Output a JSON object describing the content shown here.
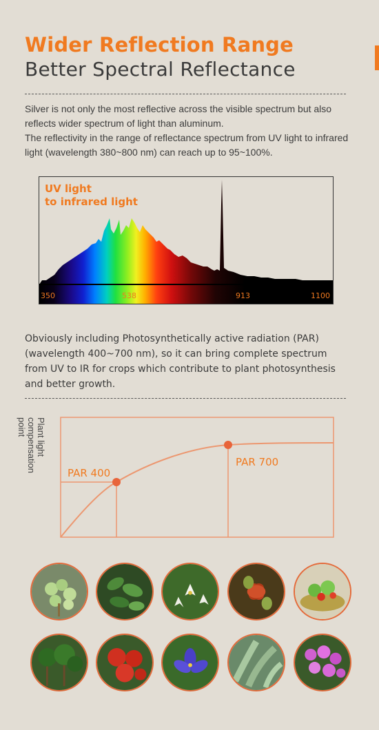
{
  "header": {
    "title": "Wider Reflection Range",
    "subtitle": "Better Spectral Reflectance"
  },
  "intro": {
    "line1": "Silver is not only the most reflective across the visible spectrum but also reflects wider spectrum of light than aluminum.",
    "line2": "The reflectivity in the range of reflectance spectrum from UV light to infrared light (wavelength 380~800 nm) can reach up to 95~100%."
  },
  "spectrum": {
    "label_line1": "UV light",
    "label_line2": "to infrared light",
    "ticks": [
      "350",
      "538",
      "913",
      "1100"
    ]
  },
  "par_text": "Obviously including Photosynthetically active radiation (PAR) (wavelength 400~700 nm), so it can bring complete spectrum from UV to IR for crops which contribute to plant photosynthesis and better growth.",
  "par_chart": {
    "y_label": "Plant light compensation point",
    "point1": "PAR 400",
    "point2": "PAR 700"
  },
  "colors": {
    "accent": "#f07a20",
    "curve": "#ec9770",
    "background": "#e2ddd4"
  },
  "photos": [
    {
      "name": "succulent-photo"
    },
    {
      "name": "leafy-plant-photo"
    },
    {
      "name": "lily-flower-photo"
    },
    {
      "name": "carnivorous-plant-photo"
    },
    {
      "name": "salad-photo"
    },
    {
      "name": "tree-saplings-photo"
    },
    {
      "name": "tomatoes-photo"
    },
    {
      "name": "iris-flower-photo"
    },
    {
      "name": "cactus-photo"
    },
    {
      "name": "pink-flowers-photo"
    }
  ]
}
